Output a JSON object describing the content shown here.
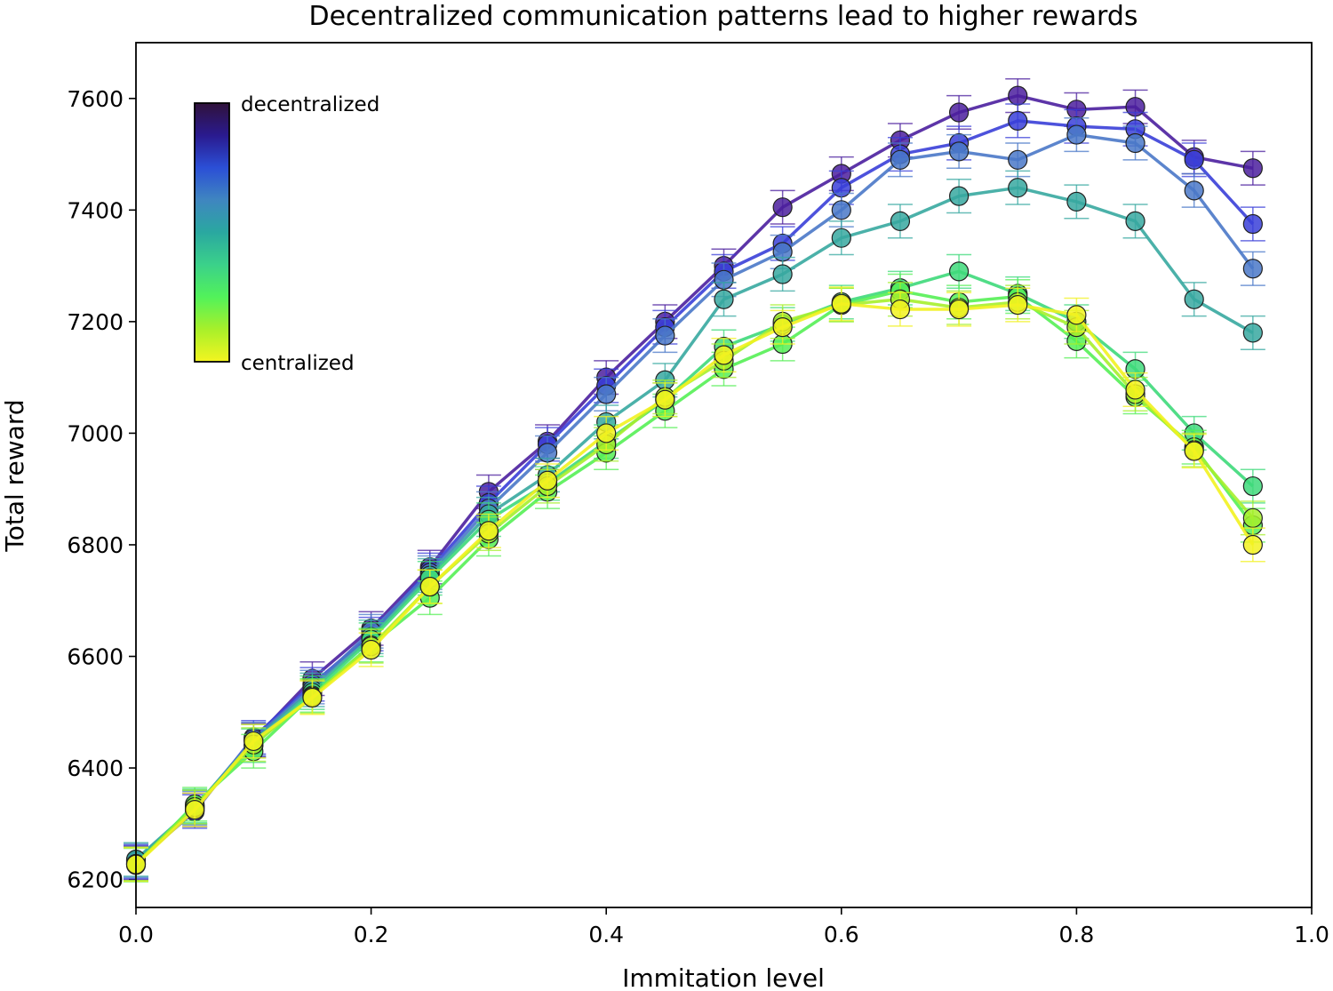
{
  "chart_data": {
    "type": "line",
    "title": "Decentralized communication patterns lead to higher rewards",
    "xlabel": "Immitation level",
    "ylabel": "Total reward",
    "xlim": [
      0.0,
      1.0
    ],
    "ylim": [
      6150,
      7700
    ],
    "xticks": [
      "0.0",
      "0.2",
      "0.4",
      "0.6",
      "0.8",
      "1.0"
    ],
    "yticks": [
      "6200",
      "6400",
      "6600",
      "6800",
      "7000",
      "7200",
      "7400",
      "7600"
    ],
    "grid": false,
    "colorbar": {
      "top_label": "decentralized",
      "bottom_label": "centralized",
      "colormap": [
        "#30123b",
        "#2a1a8f",
        "#2b4fd6",
        "#3f86c0",
        "#2aa8a0",
        "#3bd18a",
        "#52f25a",
        "#a8f02a",
        "#f4f520"
      ]
    },
    "x": [
      0.0,
      0.05,
      0.1,
      0.15,
      0.2,
      0.25,
      0.3,
      0.35,
      0.4,
      0.45,
      0.5,
      0.55,
      0.6,
      0.65,
      0.7,
      0.75,
      0.8,
      0.85,
      0.9,
      0.95
    ],
    "series": [
      {
        "color": "#4b1f9e",
        "values": [
          6230,
          6325,
          6450,
          6560,
          6650,
          6760,
          6895,
          6985,
          7100,
          7200,
          7300,
          7405,
          7465,
          7525,
          7575,
          7605,
          7580,
          7585,
          7495,
          7475
        ],
        "error": 30
      },
      {
        "color": "#3a3fd8",
        "values": [
          6232,
          6322,
          6455,
          6550,
          6640,
          6755,
          6875,
          6980,
          7085,
          7190,
          7290,
          7340,
          7440,
          7500,
          7520,
          7560,
          7550,
          7545,
          7490,
          7375
        ],
        "error": 30
      },
      {
        "color": "#4a78c8",
        "values": [
          6234,
          6328,
          6452,
          6545,
          6645,
          6750,
          6865,
          6965,
          7070,
          7175,
          7275,
          7325,
          7400,
          7490,
          7505,
          7490,
          7535,
          7520,
          7435,
          7295
        ],
        "error": 30
      },
      {
        "color": "#37a8a0",
        "values": [
          6236,
          6330,
          6448,
          6540,
          6635,
          6745,
          6855,
          6925,
          7020,
          7095,
          7240,
          7285,
          7350,
          7380,
          7425,
          7440,
          7415,
          7380,
          7240,
          7180
        ],
        "error": 30
      },
      {
        "color": "#3ed97a",
        "values": [
          6228,
          6332,
          6440,
          6535,
          6630,
          6740,
          6845,
          6910,
          6985,
          7060,
          7155,
          7195,
          7235,
          7260,
          7290,
          7250,
          7200,
          7115,
          7000,
          6905
        ],
        "error": 30
      },
      {
        "color": "#55ef55",
        "values": [
          6226,
          6335,
          6430,
          6530,
          6620,
          6705,
          6810,
          6895,
          6965,
          7040,
          7115,
          7160,
          7230,
          7255,
          7235,
          7245,
          7165,
          7065,
          6975,
          6835
        ],
        "error": 30
      },
      {
        "color": "#a6ef2c",
        "values": [
          6228,
          6330,
          6442,
          6528,
          6618,
          6725,
          6820,
          6905,
          6980,
          7065,
          7130,
          7200,
          7230,
          7240,
          7225,
          7235,
          7190,
          7070,
          6970,
          6848
        ],
        "error": 30
      },
      {
        "color": "#f2f220",
        "values": [
          6227,
          6325,
          6448,
          6526,
          6612,
          6725,
          6825,
          6915,
          7000,
          7060,
          7140,
          7190,
          7232,
          7222,
          7222,
          7230,
          7212,
          7078,
          6968,
          6800
        ],
        "error": 30
      }
    ]
  }
}
